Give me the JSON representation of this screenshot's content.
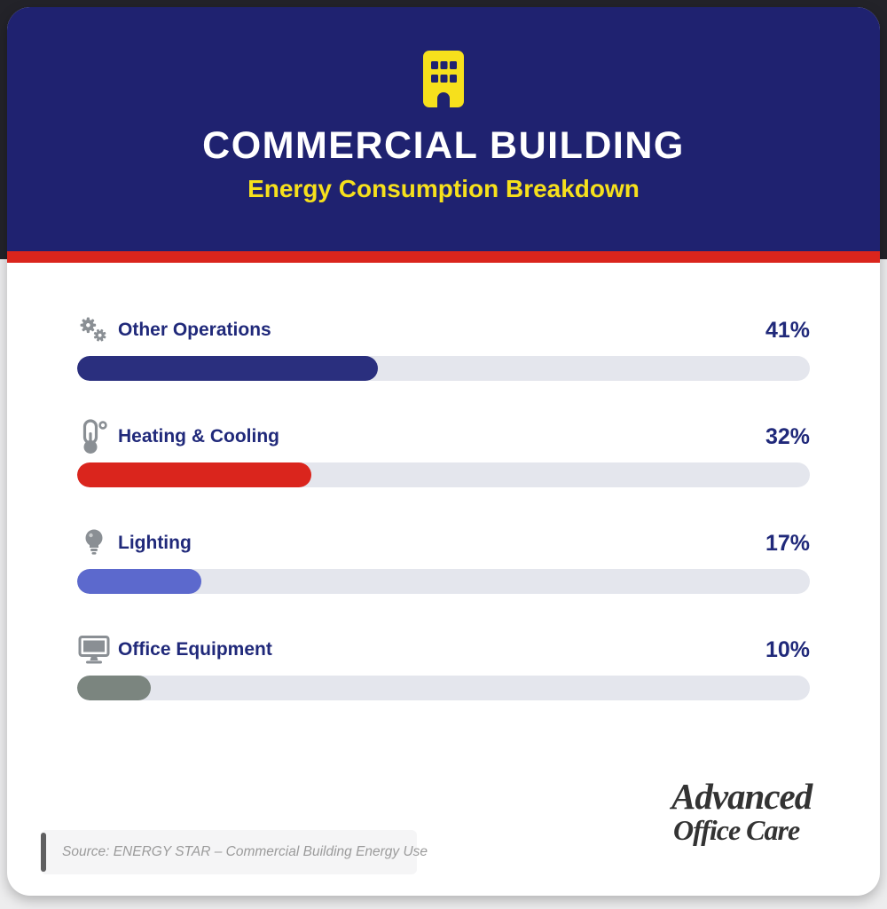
{
  "header": {
    "title": "COMMERCIAL BUILDING",
    "subtitle": "Energy Consumption Breakdown"
  },
  "colors": {
    "header_bg": "#1f2270",
    "accent_red": "#da251d",
    "accent_yellow": "#f6e01c",
    "navy_text": "#20297a",
    "bar_track": "#e4e6ed",
    "icon_gray": "#8a8f94",
    "logo_red": "#e8242b"
  },
  "chart_data": {
    "type": "bar",
    "orientation": "horizontal",
    "title": "COMMERCIAL BUILDING",
    "subtitle": "Energy Consumption Breakdown",
    "categories": [
      "Other Operations",
      "Heating & Cooling",
      "Lighting",
      "Office Equipment"
    ],
    "values": [
      41,
      32,
      17,
      10
    ],
    "unit": "%",
    "xlim": [
      0,
      100
    ],
    "grid": false,
    "legend": "none",
    "bars": [
      {
        "label": "Other Operations",
        "value": 41,
        "value_label": "41%",
        "icon": "gears-icon",
        "fill_color": "#2a2f7e"
      },
      {
        "label": "Heating & Cooling",
        "value": 32,
        "value_label": "32%",
        "icon": "thermometer-icon",
        "fill_color": "#da251d"
      },
      {
        "label": "Lighting",
        "value": 17,
        "value_label": "17%",
        "icon": "lightbulb-icon",
        "fill_color": "#5c69cd"
      },
      {
        "label": "Office Equipment",
        "value": 10,
        "value_label": "10%",
        "icon": "monitor-icon",
        "fill_color": "#7b857f"
      }
    ]
  },
  "footer": {
    "source": "Source: ENERGY STAR – Commercial Building Energy Use",
    "logo": {
      "line1": "Advanced",
      "line2": "Office Care"
    }
  }
}
